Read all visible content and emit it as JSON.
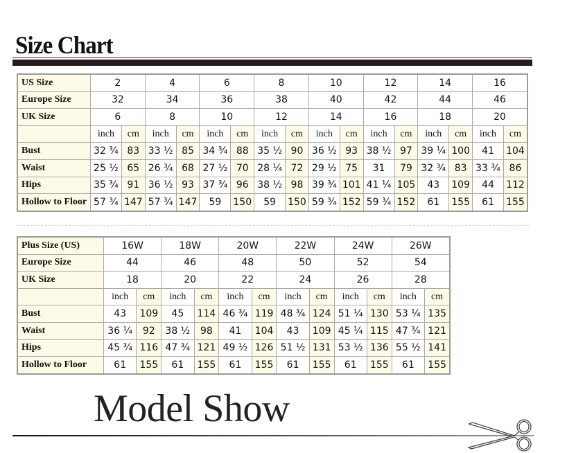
{
  "header": {
    "title": "Size Chart"
  },
  "standard_table": {
    "size_rows": [
      {
        "label": "US Size",
        "values": [
          "2",
          "4",
          "6",
          "8",
          "10",
          "12",
          "14",
          "16"
        ]
      },
      {
        "label": "Europe Size",
        "values": [
          "32",
          "34",
          "36",
          "38",
          "40",
          "42",
          "44",
          "46"
        ]
      },
      {
        "label": "UK Size",
        "values": [
          "6",
          "8",
          "10",
          "12",
          "14",
          "16",
          "18",
          "20"
        ]
      }
    ],
    "unit_labels": [
      "inch",
      "cm"
    ],
    "measure_rows": [
      {
        "label": "Bust",
        "values": [
          "32 ¾",
          "83",
          "33 ½",
          "85",
          "34 ¾",
          "88",
          "35 ½",
          "90",
          "36 ½",
          "93",
          "38 ½",
          "97",
          "39 ¼",
          "100",
          "41",
          "104"
        ]
      },
      {
        "label": "Waist",
        "values": [
          "25 ½",
          "65",
          "26 ¾",
          "68",
          "27 ½",
          "70",
          "28 ¼",
          "72",
          "29 ½",
          "75",
          "31",
          "79",
          "32 ¾",
          "83",
          "33 ¾",
          "86"
        ]
      },
      {
        "label": "Hips",
        "values": [
          "35 ¾",
          "91",
          "36 ½",
          "93",
          "37 ¾",
          "96",
          "38 ½",
          "98",
          "39 ¾",
          "101",
          "41 ¼",
          "105",
          "43",
          "109",
          "44",
          "112"
        ]
      },
      {
        "label": "Hollow to Floor",
        "values": [
          "57 ¾",
          "147",
          "57 ¾",
          "147",
          "59",
          "150",
          "59",
          "150",
          "59 ¾",
          "152",
          "59 ¾",
          "152",
          "61",
          "155",
          "61",
          "155"
        ]
      }
    ]
  },
  "plus_table": {
    "size_rows": [
      {
        "label": "Plus Size (US)",
        "values": [
          "16W",
          "18W",
          "20W",
          "22W",
          "24W",
          "26W"
        ]
      },
      {
        "label": "Europe Size",
        "values": [
          "44",
          "46",
          "48",
          "50",
          "52",
          "54"
        ]
      },
      {
        "label": "UK Size",
        "values": [
          "18",
          "20",
          "22",
          "24",
          "26",
          "28"
        ]
      }
    ],
    "unit_labels": [
      "inch",
      "cm"
    ],
    "measure_rows": [
      {
        "label": "Bust",
        "values": [
          "43",
          "109",
          "45",
          "114",
          "46 ¾",
          "119",
          "48 ¾",
          "124",
          "51 ¼",
          "130",
          "53 ¼",
          "135"
        ]
      },
      {
        "label": "Waist",
        "values": [
          "36 ¼",
          "92",
          "38 ½",
          "98",
          "41",
          "104",
          "43",
          "109",
          "45 ¼",
          "115",
          "47 ¾",
          "121"
        ]
      },
      {
        "label": "Hips",
        "values": [
          "45 ¾",
          "116",
          "47 ¾",
          "121",
          "49 ½",
          "126",
          "51 ½",
          "131",
          "53 ½",
          "136",
          "55 ½",
          "141"
        ]
      },
      {
        "label": "Hollow to Floor",
        "values": [
          "61",
          "155",
          "61",
          "155",
          "61",
          "155",
          "61",
          "155",
          "61",
          "155",
          "61",
          "155"
        ]
      }
    ]
  },
  "footer": {
    "title": "Model Show",
    "icon": "scissors-icon"
  },
  "colors": {
    "label_bg": "#fdfbe7",
    "rule": "#2b1a1b",
    "border": "#a9a9a9"
  }
}
